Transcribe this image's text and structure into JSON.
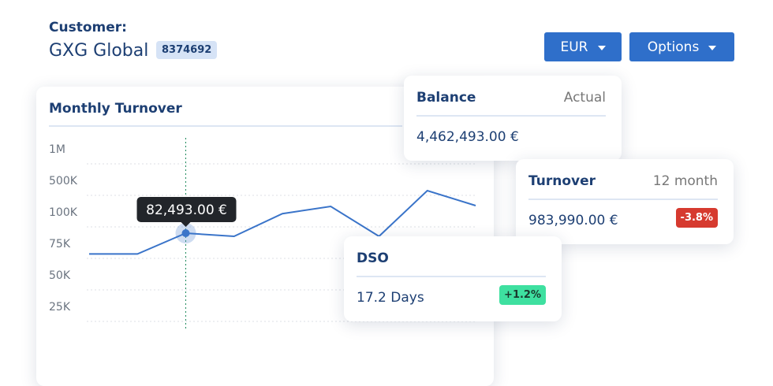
{
  "header": {
    "label": "Customer:",
    "name": "GXG Global",
    "id": "8374692"
  },
  "buttons": [
    "EUR",
    "Options"
  ],
  "chart_data": {
    "type": "line",
    "title": "Monthly Turnover",
    "categories": [
      null,
      null,
      null,
      null,
      null,
      null,
      null,
      null,
      null
    ],
    "yticks": [
      {
        "value": 1000000,
        "label": "1M"
      },
      {
        "value": 500000,
        "label": "500K"
      },
      {
        "value": 100000,
        "label": "100K"
      },
      {
        "value": 75000,
        "label": "75K"
      },
      {
        "value": 50000,
        "label": "50K"
      },
      {
        "value": 25000,
        "label": "25K"
      }
    ],
    "ylim": [
      25000,
      1000000
    ],
    "series": [
      {
        "color": "#3a74c9",
        "values": [
          66000,
          66000,
          82493,
          80000,
          98000,
          160000,
          80000,
          360000,
          170000
        ]
      }
    ],
    "highlight": 2,
    "tooltip_label": "82,493.00 €",
    "grid": true
  },
  "cards": [
    {
      "title": "Balance",
      "period": "Actual",
      "value": "4,462,493.00 €"
    },
    {
      "title": "Turnover",
      "period": "12 month",
      "value": "983,990.00 €",
      "badge": "-3.8%"
    },
    {
      "title": "DSO",
      "value": "17.2 Days",
      "badge": "+1.2%"
    }
  ]
}
